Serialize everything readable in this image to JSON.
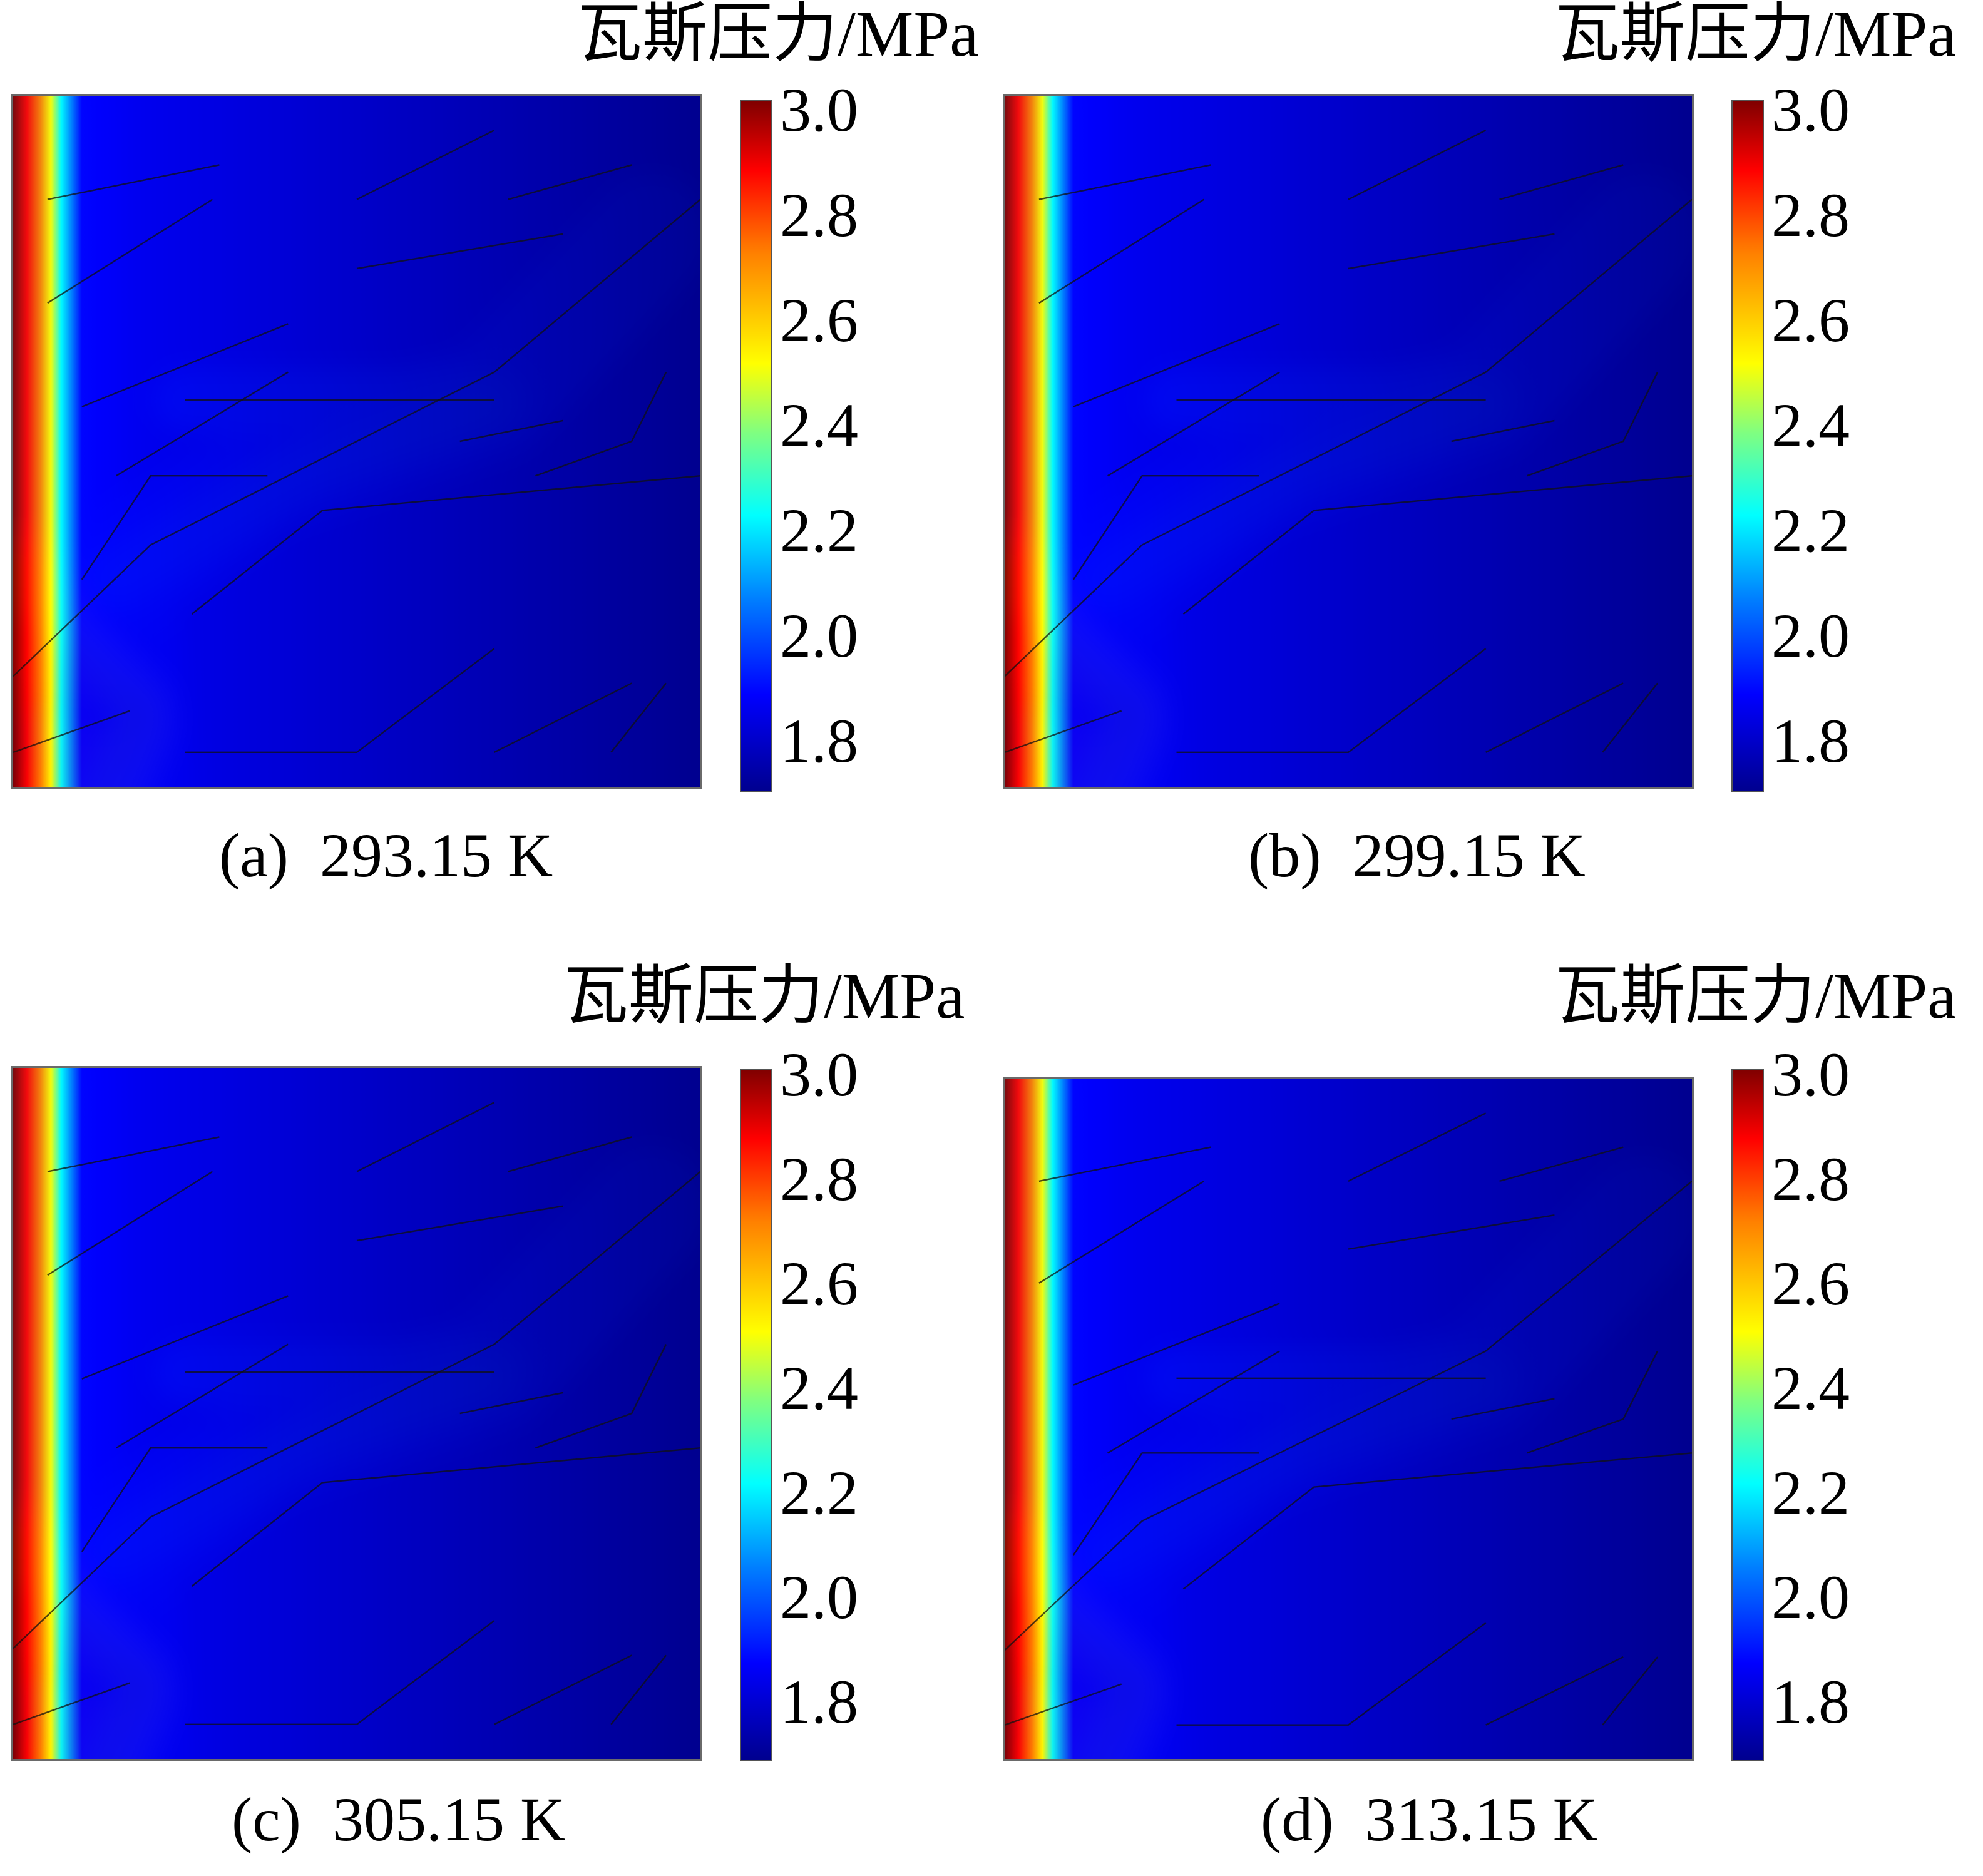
{
  "chart_data": [
    {
      "type": "heatmap",
      "panel": "(a)",
      "caption_label": "(a)",
      "caption_value": "293.15 K",
      "colorbar_title": "瓦斯压力/MPa",
      "colorbar_ticks": [
        "3.0",
        "2.8",
        "2.6",
        "2.4",
        "2.2",
        "2.0",
        "1.8"
      ],
      "colorbar_range": [
        1.72,
        3.0
      ],
      "colormap": [
        "#00008f",
        "#0000ff",
        "#00ffff",
        "#ffff00",
        "#ff0000",
        "#800000"
      ]
    },
    {
      "type": "heatmap",
      "panel": "(b)",
      "caption_label": "(b)",
      "caption_value": "299.15 K",
      "colorbar_title": "瓦斯压力/MPa",
      "colorbar_ticks": [
        "3.0",
        "2.8",
        "2.6",
        "2.4",
        "2.2",
        "2.0",
        "1.8"
      ],
      "colorbar_range": [
        1.72,
        3.0
      ],
      "colormap": [
        "#00008f",
        "#0000ff",
        "#00ffff",
        "#ffff00",
        "#ff0000",
        "#800000"
      ]
    },
    {
      "type": "heatmap",
      "panel": "(c)",
      "caption_label": "(c)",
      "caption_value": "305.15 K",
      "colorbar_title": "瓦斯压力/MPa",
      "colorbar_ticks": [
        "3.0",
        "2.8",
        "2.6",
        "2.4",
        "2.2",
        "2.0",
        "1.8"
      ],
      "colorbar_range": [
        1.72,
        3.0
      ],
      "colormap": [
        "#00008f",
        "#0000ff",
        "#00ffff",
        "#ffff00",
        "#ff0000",
        "#800000"
      ]
    },
    {
      "type": "heatmap",
      "panel": "(d)",
      "caption_label": "(d)",
      "caption_value": "313.15 K",
      "colorbar_title": "瓦斯压力/MPa",
      "colorbar_ticks": [
        "3.0",
        "2.8",
        "2.6",
        "2.4",
        "2.2",
        "2.0",
        "1.8"
      ],
      "colorbar_range": [
        1.72,
        3.0
      ],
      "colormap": [
        "#00008f",
        "#0000ff",
        "#00ffff",
        "#ffff00",
        "#ff0000",
        "#800000"
      ]
    }
  ]
}
